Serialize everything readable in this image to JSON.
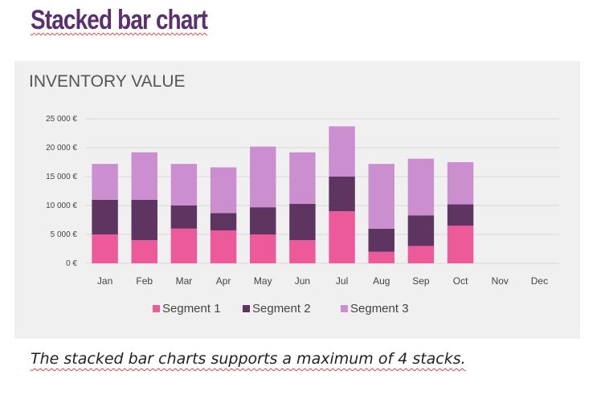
{
  "page": {
    "heading": "Stacked bar chart",
    "footer_note": "The stacked bar charts supports a maximum of 4 stacks."
  },
  "colors": {
    "heading": "#5c2f6e",
    "panel_background": "#f0f0f0",
    "gridline": "#d9d9d9",
    "axis_text": "#444444",
    "segment_1": "#ec5a9a",
    "segment_2": "#5e3461",
    "segment_3": "#cb8fd0"
  },
  "chart_data": {
    "type": "bar",
    "stacked": true,
    "title": "INVENTORY VALUE",
    "xlabel": "",
    "ylabel": "",
    "categories": [
      "Jan",
      "Feb",
      "Mar",
      "Apr",
      "May",
      "Jun",
      "Jul",
      "Aug",
      "Sep",
      "Oct",
      "Nov",
      "Dec"
    ],
    "series": [
      {
        "name": "Segment 1",
        "color": "#ec5a9a",
        "values": [
          5000,
          4000,
          6000,
          5700,
          5000,
          4000,
          9000,
          2000,
          3000,
          6500,
          null,
          null
        ]
      },
      {
        "name": "Segment 2",
        "color": "#5e3461",
        "values": [
          6000,
          7000,
          4000,
          3000,
          4700,
          6300,
          6000,
          4000,
          5300,
          3700,
          null,
          null
        ]
      },
      {
        "name": "Segment 3",
        "color": "#cb8fd0",
        "values": [
          6200,
          8200,
          7200,
          7900,
          10500,
          8900,
          8700,
          11200,
          9800,
          7300,
          null,
          null
        ]
      }
    ],
    "ylim": [
      0,
      25000
    ],
    "yticks": [
      0,
      5000,
      10000,
      15000,
      20000,
      25000
    ],
    "ytick_labels": [
      "0 €",
      "5 000 €",
      "10 000 €",
      "15 000 €",
      "20 000 €",
      "25 000 €"
    ],
    "grid": true,
    "legend_position": "bottom"
  }
}
